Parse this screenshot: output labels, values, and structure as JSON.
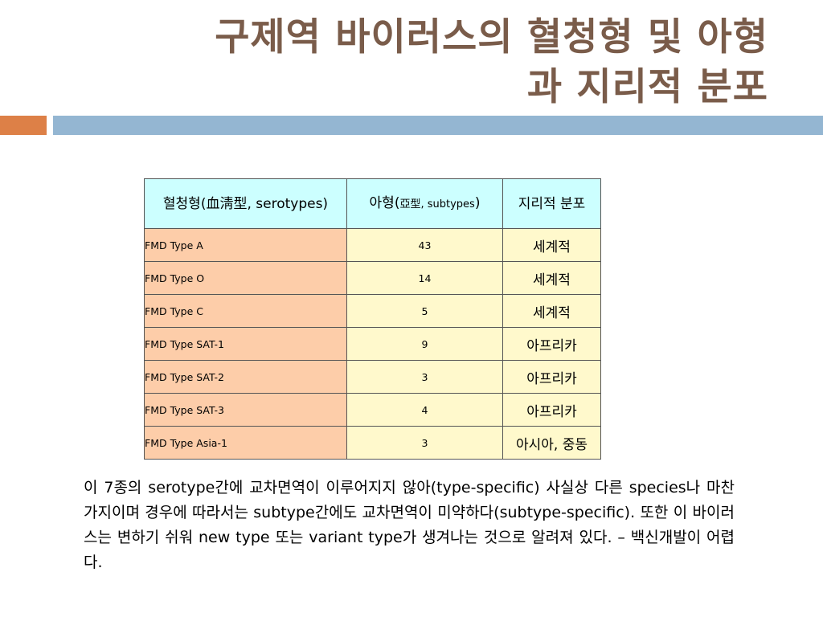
{
  "slide": {
    "title_line1": "구제역 바이러스의 혈청형 및 아형",
    "title_line2": "과 지리적 분포",
    "accent_colors": {
      "orange": "#dd8047",
      "blue": "#94b6d2",
      "title": "#7a5c4a"
    }
  },
  "table": {
    "headers": {
      "serotype": "혈청형(血淸型, serotypes)",
      "subtype_main": "아형(",
      "subtype_small": "亞型, subtypes",
      "subtype_close": ")",
      "distribution": "지리적 분포"
    },
    "rows": [
      {
        "type": "FMD Type A",
        "subtypes": "43",
        "distribution": "세계적"
      },
      {
        "type": "FMD Type O",
        "subtypes": "14",
        "distribution": "세계적"
      },
      {
        "type": "FMD Type C",
        "subtypes": "5",
        "distribution": "세계적"
      },
      {
        "type": "FMD Type SAT-1",
        "subtypes": "9",
        "distribution": "아프리카"
      },
      {
        "type": "FMD Type SAT-2",
        "subtypes": "3",
        "distribution": "아프리카"
      },
      {
        "type": "FMD Type SAT-3",
        "subtypes": "4",
        "distribution": "아프리카"
      },
      {
        "type": "FMD Type Asia-1",
        "subtypes": "3",
        "distribution": "아시아, 중동"
      }
    ]
  },
  "body": {
    "paragraph": "이 7종의 serotype간에 교차면역이 이루어지지 않아(type-specific) 사실상 다른 species나 마찬가지이며 경우에 따라서는 subtype간에도 교차면역이 미약하다(subtype-specific). 또한 이 바이러스는 변하기 쉬워 new type 또는 variant type가 생겨나는 것으로 알려져 있다. – 백신개발이 어렵다."
  }
}
